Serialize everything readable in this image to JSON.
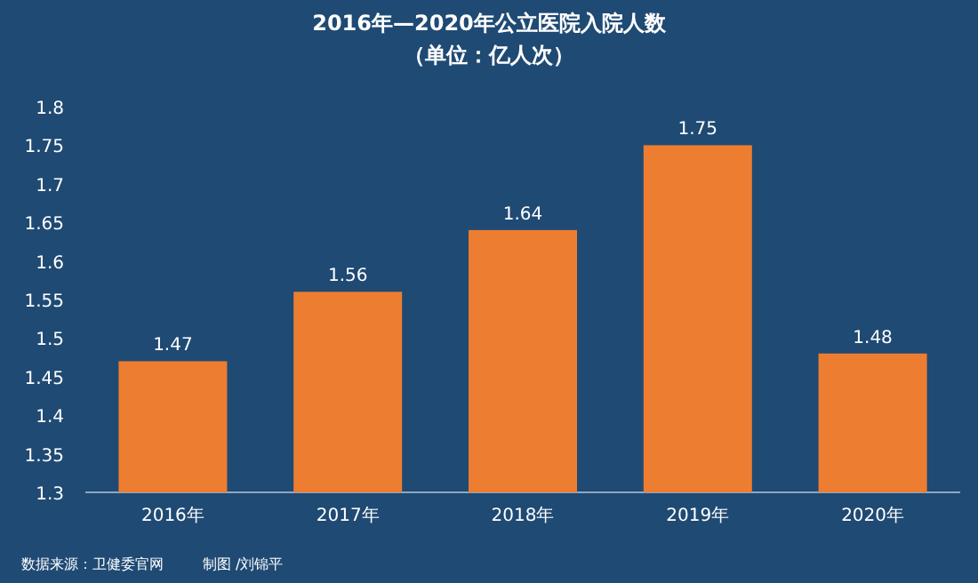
{
  "chart_data": {
    "type": "bar",
    "title": "2016年—2020年公立医院入院人数",
    "subtitle": "（单位：亿人次）",
    "categories": [
      "2016年",
      "2017年",
      "2018年",
      "2019年",
      "2020年"
    ],
    "values": [
      1.47,
      1.56,
      1.64,
      1.75,
      1.48
    ],
    "color": "#ed7d31",
    "ylim": [
      1.3,
      1.8
    ],
    "yticks": [
      1.3,
      1.35,
      1.4,
      1.45,
      1.5,
      1.55,
      1.6,
      1.65,
      1.7,
      1.75,
      1.8
    ],
    "data_labels": true,
    "grid": false,
    "annotations": [
      "数据来源：卫健委官网",
      "制图 /刘锦平"
    ]
  }
}
